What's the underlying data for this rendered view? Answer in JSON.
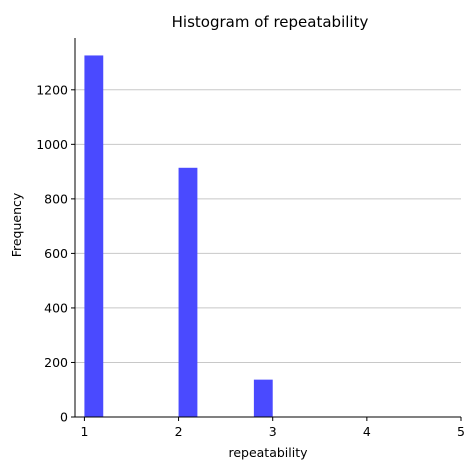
{
  "chart_data": {
    "type": "bar",
    "title": "Histogram of repeatability",
    "xlabel": "repeatability",
    "ylabel": "Frequency",
    "xlim": [
      0.9,
      5.0
    ],
    "ylim": [
      0,
      1390
    ],
    "xticks": [
      1,
      2,
      3,
      4,
      5
    ],
    "yticks": [
      0,
      200,
      400,
      600,
      800,
      1000,
      1200
    ],
    "bin_width": 0.2,
    "bars": [
      {
        "x_start": 1.0,
        "x_end": 1.2,
        "value": 1326
      },
      {
        "x_start": 2.0,
        "x_end": 2.2,
        "value": 914
      },
      {
        "x_start": 2.8,
        "x_end": 3.0,
        "value": 137
      }
    ],
    "bar_color": "#4a4aff",
    "grid": "y",
    "legend": "none"
  }
}
